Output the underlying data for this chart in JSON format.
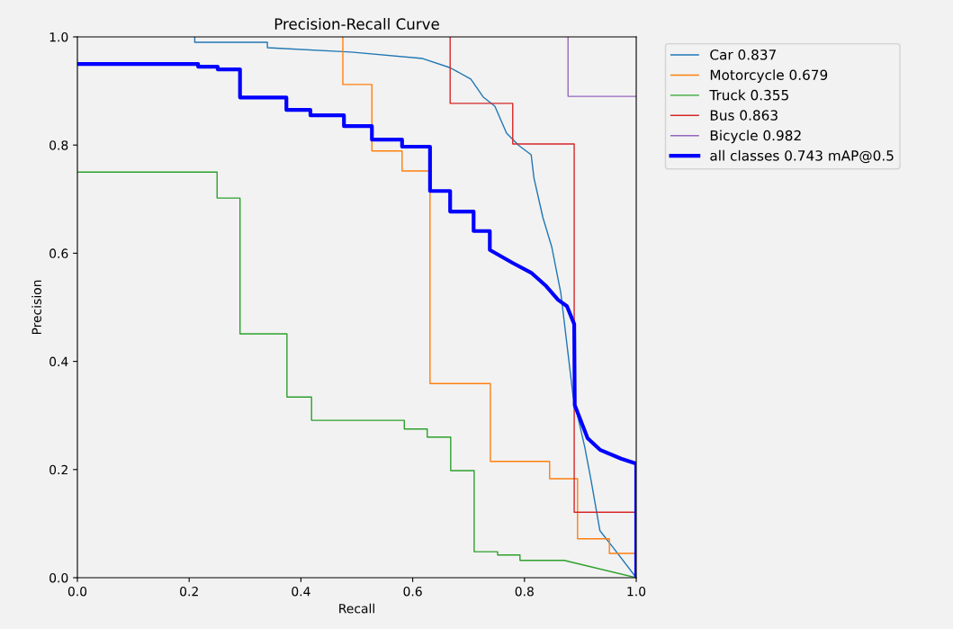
{
  "chart_data": {
    "type": "line",
    "title": "Precision-Recall Curve",
    "xlabel": "Recall",
    "ylabel": "Precision",
    "xlim": [
      0,
      1
    ],
    "ylim": [
      0,
      1
    ],
    "xticks": [
      {
        "value": 0,
        "label": "0.0"
      },
      0.2,
      0.4,
      0.6,
      0.8,
      {
        "value": 1,
        "label": "1.0"
      }
    ],
    "yticks": [
      {
        "value": 0,
        "label": "0.0"
      },
      0.2,
      0.4,
      0.6,
      0.8,
      {
        "value": 1,
        "label": "1.0"
      }
    ],
    "grid": false,
    "legend": "top right",
    "line_style": "solid",
    "marker": "none",
    "series": [
      {
        "name": "Car 0.837",
        "color": "#1f77b4",
        "x": [
          0.21,
          0.21,
          0.34,
          0.34,
          0.49,
          0.618,
          0.667,
          0.704,
          0.726,
          0.747,
          0.768,
          0.79,
          0.812,
          0.817,
          0.833,
          0.849,
          0.865,
          0.887,
          0.908,
          0.919,
          0.935,
          0.957,
          1.0
        ],
        "values": [
          1.0,
          0.99,
          0.99,
          0.98,
          0.972,
          0.96,
          0.943,
          0.922,
          0.889,
          0.872,
          0.822,
          0.799,
          0.782,
          0.739,
          0.666,
          0.611,
          0.527,
          0.336,
          0.241,
          0.181,
          0.087,
          0.058,
          0.0
        ]
      },
      {
        "name": "Motorcycle 0.679",
        "color": "#ff7f0e",
        "x": [
          0.475,
          0.475,
          0.527,
          0.527,
          0.581,
          0.581,
          0.631,
          0.631,
          0.739,
          0.739,
          0.845,
          0.845,
          0.895,
          0.895,
          0.952,
          0.952,
          1.0,
          1.0
        ],
        "values": [
          1.0,
          0.912,
          0.912,
          0.789,
          0.789,
          0.752,
          0.752,
          0.359,
          0.359,
          0.215,
          0.215,
          0.183,
          0.183,
          0.072,
          0.072,
          0.045,
          0.045,
          0.0
        ]
      },
      {
        "name": "Truck 0.355",
        "color": "#2ca02c",
        "x": [
          0.0,
          0.25,
          0.25,
          0.291,
          0.291,
          0.375,
          0.375,
          0.419,
          0.419,
          0.585,
          0.585,
          0.626,
          0.626,
          0.668,
          0.668,
          0.71,
          0.71,
          0.752,
          0.752,
          0.792,
          0.792,
          0.871,
          1.0
        ],
        "values": [
          0.75,
          0.75,
          0.702,
          0.702,
          0.451,
          0.451,
          0.334,
          0.334,
          0.291,
          0.291,
          0.275,
          0.275,
          0.26,
          0.26,
          0.198,
          0.198,
          0.048,
          0.048,
          0.042,
          0.042,
          0.032,
          0.032,
          0.0
        ]
      },
      {
        "name": "Bus 0.863",
        "color": "#d62728",
        "x": [
          0.667,
          0.667,
          0.779,
          0.779,
          0.889,
          0.889,
          1.0,
          1.0
        ],
        "values": [
          1.0,
          0.877,
          0.877,
          0.802,
          0.802,
          0.121,
          0.121,
          0.0
        ]
      },
      {
        "name": "Bicycle 0.982",
        "color": "#9467bd",
        "x": [
          0.878,
          0.878,
          1.0
        ],
        "values": [
          1.0,
          0.89,
          0.89
        ]
      },
      {
        "name": "all classes 0.743 mAP@0.5",
        "color": "#0000ff",
        "x": [
          0.0,
          0.216,
          0.216,
          0.251,
          0.251,
          0.291,
          0.291,
          0.374,
          0.374,
          0.417,
          0.417,
          0.477,
          0.477,
          0.527,
          0.527,
          0.581,
          0.581,
          0.631,
          0.631,
          0.667,
          0.667,
          0.709,
          0.709,
          0.738,
          0.738,
          0.779,
          0.812,
          0.839,
          0.86,
          0.876,
          0.889,
          0.89,
          0.913,
          0.936,
          0.973,
          1.0,
          1.0
        ],
        "values": [
          0.95,
          0.95,
          0.945,
          0.945,
          0.94,
          0.94,
          0.888,
          0.888,
          0.865,
          0.865,
          0.855,
          0.855,
          0.835,
          0.835,
          0.81,
          0.81,
          0.797,
          0.797,
          0.715,
          0.715,
          0.677,
          0.677,
          0.641,
          0.641,
          0.606,
          0.582,
          0.564,
          0.539,
          0.514,
          0.502,
          0.469,
          0.319,
          0.258,
          0.236,
          0.22,
          0.211,
          0.0
        ]
      }
    ]
  }
}
